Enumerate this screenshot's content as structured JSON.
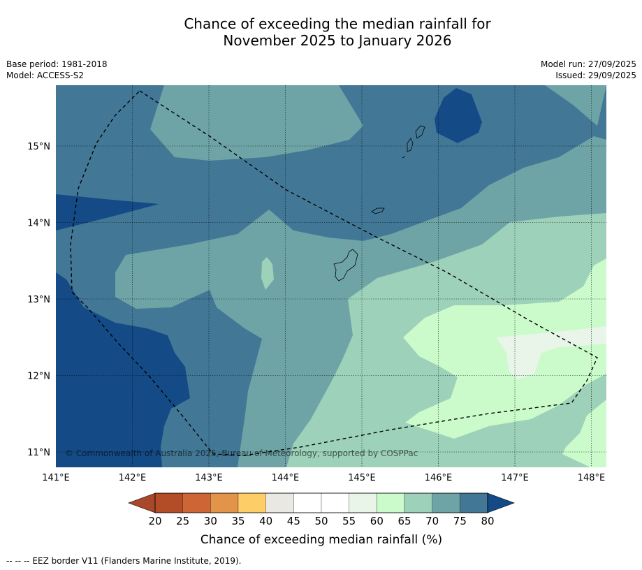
{
  "title": {
    "line1": "Chance of exceeding the median rainfall for",
    "line2": "November 2025 to January 2026"
  },
  "meta": {
    "base_period": "Base period: 1981-2018",
    "model": "Model: ACCESS-S2",
    "model_run": "Model run: 27/09/2025",
    "issued": "Issued: 29/09/2025"
  },
  "axes": {
    "lon_ticks": [
      {
        "value": 141,
        "label": "141°E"
      },
      {
        "value": 142,
        "label": "142°E"
      },
      {
        "value": 143,
        "label": "143°E"
      },
      {
        "value": 144,
        "label": "144°E"
      },
      {
        "value": 145,
        "label": "145°E"
      },
      {
        "value": 146,
        "label": "146°E"
      },
      {
        "value": 147,
        "label": "147°E"
      },
      {
        "value": 148,
        "label": "148°E"
      }
    ],
    "lat_ticks": [
      {
        "value": 15,
        "label": "15°N"
      },
      {
        "value": 14,
        "label": "14°N"
      },
      {
        "value": 13,
        "label": "13°N"
      },
      {
        "value": 12,
        "label": "12°N"
      },
      {
        "value": 11,
        "label": "11°N"
      }
    ],
    "lon_range": [
      141,
      148.2
    ],
    "lat_range": [
      10.8,
      15.8
    ]
  },
  "copyright": "© Commonwealth of Australia 2025, Bureau of Meteorology, supported by COSPPac",
  "colorbar": {
    "title": "Chance of exceeding median rainfall (%)",
    "labels": [
      "20",
      "25",
      "30",
      "35",
      "40",
      "45",
      "50",
      "55",
      "60",
      "65",
      "70",
      "75",
      "80"
    ],
    "under_color": "#a9472a",
    "over_color": "#144b86",
    "colors": [
      "#b24d27",
      "#cd6634",
      "#e2954a",
      "#fdce68",
      "#e9e8e3",
      "#ffffff",
      "#ffffff",
      "#e9f5e9",
      "#cbfbcb",
      "#9dd1b9",
      "#6ea4a6",
      "#427896"
    ]
  },
  "footer": "--  --  -- EEZ border V11 (Flanders Marine Institute, 2019).",
  "map_colors": {
    "c_80plus": "#144b86",
    "c_75_80": "#427896",
    "c_70_75": "#6ea4a6",
    "c_65_70": "#9dd1b9",
    "c_60_65": "#cbfbcb",
    "c_55_60": "#e9f5e9",
    "land": "#9dd1b9"
  }
}
